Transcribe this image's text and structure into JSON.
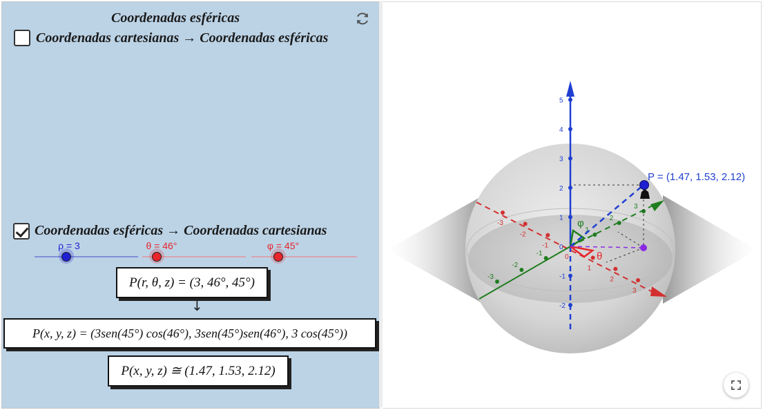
{
  "left_panel": {
    "title": "Coordenadas esféricas",
    "option1": {
      "label": "Coordenadas cartesianas → Coordenadas esféricas",
      "checked": false
    },
    "option2": {
      "label": "Coordenadas esféricas → Coordenadas cartesianas",
      "checked": true
    },
    "sliders": [
      {
        "label": "ρ = 3",
        "color": "#1f1fd1",
        "value": 3
      },
      {
        "label": "θ = 46°",
        "color": "#e8262b",
        "value": 46
      },
      {
        "label": "φ = 45°",
        "color": "#e8262b",
        "value": 45
      }
    ],
    "formula1": "P(r, θ, z) = (3, 46°, 45°)",
    "arrow": "↓",
    "formula2": "P(x, y, z) = (3sen(45°) cos(46°), 3sen(45°)sen(46°), 3 cos(45°))",
    "formula3": "P(x, y, z) ≅ (1.47, 1.53, 2.12)",
    "reset_icon": "refresh-icon"
  },
  "graphics": {
    "point_label": "P = (1.47, 1.53, 2.12)",
    "point": {
      "x": 1.47,
      "y": 1.53,
      "z": 2.12
    },
    "z_ticks": [
      "5",
      "4",
      "3",
      "2",
      "1",
      "0",
      "-1",
      "-2"
    ],
    "x_ticks": [
      "-3",
      "-2",
      "-1",
      "0",
      "1",
      "2",
      "3"
    ],
    "y_ticks": [
      "-3",
      "-2",
      "-1",
      "1",
      "2",
      "3"
    ],
    "angle_theta": "θ",
    "angle_phi": "φ",
    "colors": {
      "x_axis": "#d32f2f",
      "y_axis": "#1e7d1e",
      "z_axis": "#1f3fd1",
      "point": "#1f1fd1",
      "projection": "#8a2be2"
    },
    "fullscreen_icon": "fullscreen-icon"
  }
}
